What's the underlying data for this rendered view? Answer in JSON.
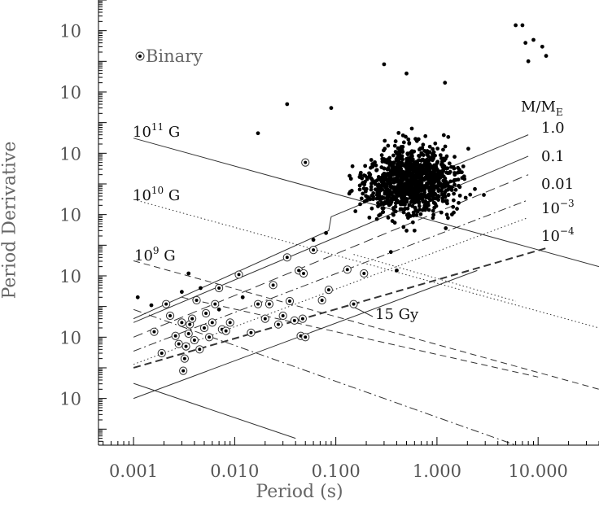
{
  "chart_data": {
    "type": "scatter",
    "xlabel": "Period (s)",
    "ylabel": "Period Derivative",
    "xscale": "log",
    "yscale": "log",
    "xlim": [
      0.00045,
      40
    ],
    "ylim": [
      3e-24,
      1e-09
    ],
    "x_ticks": [
      {
        "value": 0.001,
        "label": "0.001"
      },
      {
        "value": 0.01,
        "label": "0.010"
      },
      {
        "value": 0.1,
        "label": "0.100"
      },
      {
        "value": 1,
        "label": "1.000"
      },
      {
        "value": 10,
        "label": "10.000"
      }
    ],
    "y_ticks": [
      {
        "value": 1e-10,
        "base": "10",
        "exp": "−10"
      },
      {
        "value": 1e-12,
        "base": "10",
        "exp": "−12"
      },
      {
        "value": 1e-14,
        "base": "10",
        "exp": "−14"
      },
      {
        "value": 1e-16,
        "base": "10",
        "exp": "−16"
      },
      {
        "value": 1e-18,
        "base": "10",
        "exp": "−18"
      },
      {
        "value": 1e-20,
        "base": "10",
        "exp": "−20"
      },
      {
        "value": 1e-22,
        "base": "10",
        "exp": "−22"
      }
    ],
    "legend": {
      "label": "Binary",
      "placement": "top-left"
    },
    "field_lines": [
      {
        "label_base": "10",
        "label_exp": "11",
        "label_unit": "G",
        "style": "solid",
        "points": [
          [
            0.001,
            3.1e-14
          ],
          [
            40,
            2e-18
          ]
        ]
      },
      {
        "label_base": "10",
        "label_exp": "10",
        "label_unit": "G",
        "style": "dotted",
        "points": [
          [
            0.001,
            3.1e-16
          ],
          [
            40,
            2e-20
          ]
        ]
      },
      {
        "label_base": "10",
        "label_exp": "9",
        "label_unit": "G",
        "style": "dashed",
        "points": [
          [
            0.001,
            3.1e-18
          ],
          [
            40,
            2e-22
          ]
        ]
      },
      {
        "label_base": "",
        "label_exp": "",
        "label_unit": "",
        "style": "solid",
        "points": [
          [
            0.001,
            3.1e-22
          ],
          [
            0.04,
            5e-24
          ]
        ]
      }
    ],
    "deathline": {
      "points": [
        [
          0.001,
          4e-20
        ],
        [
          0.085,
          3e-17
        ],
        [
          0.09,
          8.5e-17
        ],
        [
          8,
          4e-14
        ]
      ]
    },
    "mass_lines": {
      "header_base": "M/M",
      "header_sub": "E",
      "items": [
        {
          "label": "1.0",
          "style": "solid",
          "points": [
            [
              0.001,
              3e-20
            ],
            [
              8,
              8e-15
            ]
          ]
        },
        {
          "label": "0.1",
          "style": "longdash",
          "points": [
            [
              0.001,
              1e-20
            ],
            [
              8,
              2e-15
            ]
          ]
        },
        {
          "label": "0.01",
          "style": "dashdot",
          "points": [
            [
              0.001,
              3.5e-21
            ],
            [
              8,
              3e-16
            ]
          ]
        },
        {
          "label_base": "10",
          "label_exp": "−3",
          "style": "dotted",
          "points": [
            [
              0.001,
              1.3e-21
            ],
            [
              8,
              8e-17
            ]
          ]
        },
        {
          "label_base": "10",
          "label_exp": "−4",
          "style": "heavydash",
          "points": [
            [
              0.001,
              1e-21
            ],
            [
              12,
              8e-18
            ]
          ]
        }
      ]
    },
    "age_line": {
      "label": "15 Gy",
      "style": "solid",
      "points": [
        [
          0.001,
          1e-22
        ],
        [
          2.5,
          1.5e-18
        ]
      ]
    },
    "other_lines": [
      {
        "style": "dashdot",
        "points": [
          [
            0.001,
            8e-20
          ],
          [
            6,
            3e-24
          ]
        ]
      },
      {
        "style": "dashed",
        "points": [
          [
            0.003,
            2e-19
          ],
          [
            10,
            5e-22
          ]
        ]
      },
      {
        "style": "dotted",
        "points": [
          [
            0.15,
            5e-18
          ],
          [
            6,
            1.5e-19
          ]
        ]
      }
    ],
    "binary_pulsars": [
      [
        0.0016,
        1.5e-20
      ],
      [
        0.0019,
        3e-21
      ],
      [
        0.0021,
        1.2e-19
      ],
      [
        0.0023,
        5e-20
      ],
      [
        0.0026,
        1.1e-20
      ],
      [
        0.0028,
        6e-21
      ],
      [
        0.003,
        3e-20
      ],
      [
        0.0031,
        8e-22
      ],
      [
        0.0032,
        2e-21
      ],
      [
        0.0033,
        5e-21
      ],
      [
        0.0035,
        1.3e-20
      ],
      [
        0.0036,
        2.6e-20
      ],
      [
        0.0038,
        4e-20
      ],
      [
        0.004,
        8e-21
      ],
      [
        0.0042,
        1.6e-19
      ],
      [
        0.0045,
        4e-21
      ],
      [
        0.005,
        2e-20
      ],
      [
        0.0052,
        6e-20
      ],
      [
        0.0056,
        1e-20
      ],
      [
        0.006,
        3e-20
      ],
      [
        0.0064,
        1.2e-19
      ],
      [
        0.007,
        4e-19
      ],
      [
        0.0075,
        1.8e-20
      ],
      [
        0.0082,
        1.6e-20
      ],
      [
        0.009,
        3e-20
      ],
      [
        0.011,
        1.1e-18
      ],
      [
        0.0145,
        1.4e-20
      ],
      [
        0.017,
        1.2e-19
      ],
      [
        0.02,
        4e-20
      ],
      [
        0.022,
        1.2e-19
      ],
      [
        0.024,
        5e-19
      ],
      [
        0.027,
        2.6e-20
      ],
      [
        0.03,
        5e-20
      ],
      [
        0.033,
        4e-18
      ],
      [
        0.035,
        1.5e-19
      ],
      [
        0.039,
        3.5e-20
      ],
      [
        0.043,
        1.5e-18
      ],
      [
        0.045,
        1.1e-20
      ],
      [
        0.047,
        4e-20
      ],
      [
        0.048,
        1.2e-18
      ],
      [
        0.05,
        1e-20
      ],
      [
        0.06,
        7e-18
      ],
      [
        0.073,
        1.6e-19
      ],
      [
        0.085,
        3.5e-19
      ],
      [
        0.13,
        1.6e-18
      ],
      [
        0.15,
        1.2e-19
      ],
      [
        0.19,
        1.2e-18
      ],
      [
        0.05,
        5e-15
      ]
    ]
  }
}
